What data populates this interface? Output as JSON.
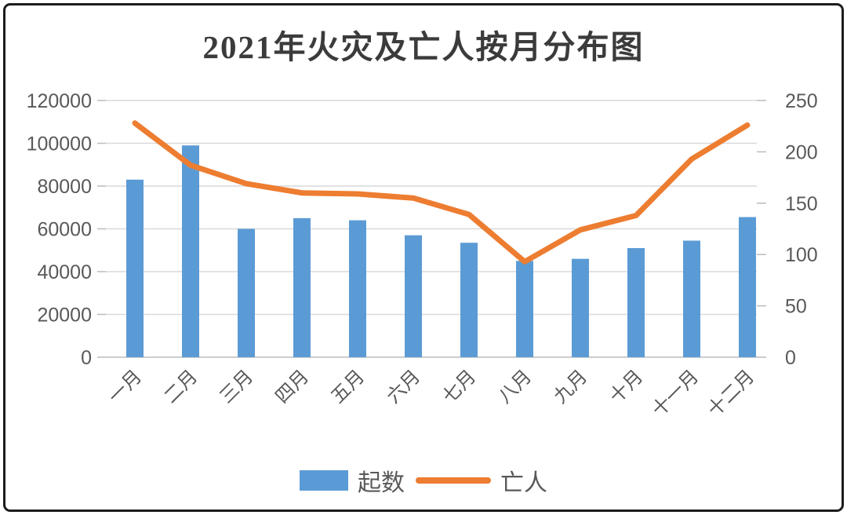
{
  "chart_data": {
    "type": "bar",
    "title": "2021年火灾及亡人按月分布图",
    "categories": [
      "一月",
      "二月",
      "三月",
      "四月",
      "五月",
      "六月",
      "七月",
      "八月",
      "九月",
      "十月",
      "十一月",
      "十二月"
    ],
    "series": [
      {
        "name": "起数",
        "type": "bar",
        "axis": "left",
        "color": "#5B9BD5",
        "values": [
          83000,
          99000,
          60000,
          65000,
          64000,
          57000,
          53500,
          45000,
          46000,
          51000,
          54500,
          65500
        ]
      },
      {
        "name": "亡人",
        "type": "line",
        "axis": "right",
        "color": "#ED7D31",
        "values": [
          228,
          187,
          169,
          160,
          159,
          155,
          139,
          93,
          124,
          138,
          193,
          226
        ]
      }
    ],
    "left_axis": {
      "min": 0,
      "max": 120000,
      "ticks": [
        0,
        20000,
        40000,
        60000,
        80000,
        100000,
        120000
      ]
    },
    "right_axis": {
      "min": 0,
      "max": 250,
      "ticks": [
        0,
        50,
        100,
        150,
        200,
        250
      ]
    },
    "grid": true,
    "legend_position": "bottom",
    "x_label_rotation_deg": -45
  },
  "legend": {
    "items": [
      {
        "label": "起数",
        "swatch": "bar",
        "color": "#5B9BD5"
      },
      {
        "label": "亡人",
        "swatch": "line",
        "color": "#ED7D31"
      }
    ]
  },
  "styles": {
    "bar_color": "#5B9BD5",
    "line_color": "#ED7D31",
    "grid_color": "#D9D9D9",
    "tick_color": "#BFBFBF",
    "axis_line_color": "#C9C9C9",
    "axis_text_color": "#595959",
    "title_color": "#3B3B3B",
    "frame_border_color": "#1C1C1C",
    "background": "#FFFFFF"
  }
}
